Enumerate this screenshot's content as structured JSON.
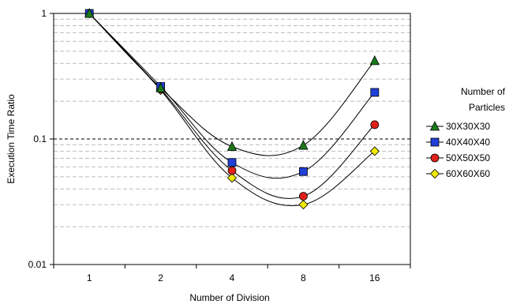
{
  "chart_data": {
    "type": "line",
    "title": "",
    "xlabel": "Number of Division",
    "ylabel": "Execution Time Ratio",
    "categories": [
      "1",
      "2",
      "4",
      "8",
      "16"
    ],
    "y_scale": "log",
    "ylim": [
      0.01,
      1
    ],
    "y_ticks": [
      "0.01",
      "0.1",
      "1"
    ],
    "grid": "horizontal minor dashed, major dashed",
    "legend": {
      "title_lines": [
        "Number of",
        "Particles"
      ],
      "placement": "right"
    },
    "series": [
      {
        "name": "30X30X30",
        "marker": "triangle",
        "color": "#1a7a1a",
        "values": [
          1.0,
          0.255,
          0.087,
          0.089,
          0.42
        ]
      },
      {
        "name": "40X40X40",
        "marker": "square",
        "color": "#1f3fd6",
        "values": [
          1.0,
          0.262,
          0.065,
          0.055,
          0.235
        ]
      },
      {
        "name": "50X50X50",
        "marker": "circle",
        "color": "#e0201b",
        "values": [
          1.0,
          0.25,
          0.056,
          0.035,
          0.13
        ]
      },
      {
        "name": "60X60X60",
        "marker": "diamond",
        "color": "#f2ea00",
        "values": [
          1.0,
          0.245,
          0.049,
          0.03,
          0.08
        ]
      }
    ]
  }
}
